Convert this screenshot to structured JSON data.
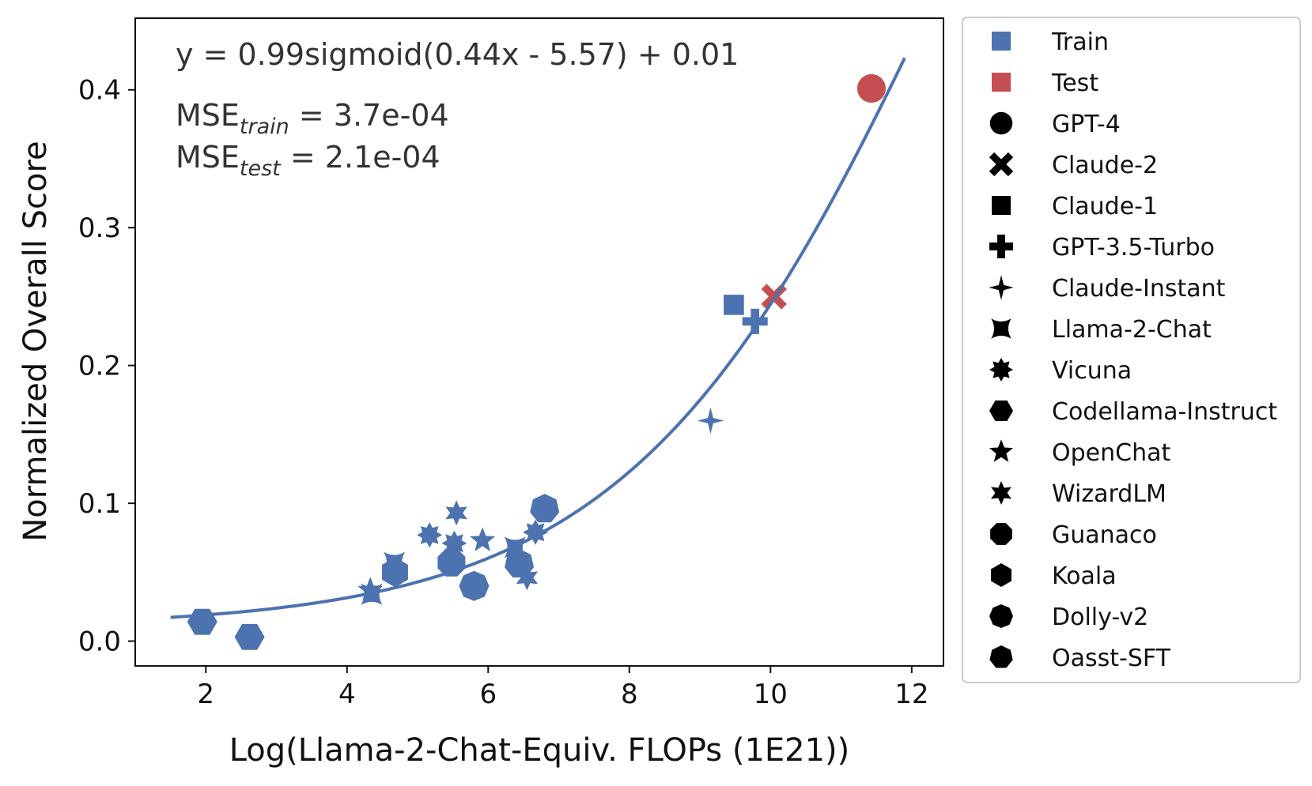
{
  "chart_data": {
    "type": "scatter",
    "xlabel": "Log(Llama-2-Chat-Equiv. FLOPs (1E21))",
    "ylabel": "Normalized Overall Score",
    "xlim": [
      1.0,
      12.45
    ],
    "ylim": [
      -0.018,
      0.452
    ],
    "x_ticks": [
      "2",
      "4",
      "6",
      "8",
      "10",
      "12"
    ],
    "y_ticks": [
      "0.0",
      "0.1",
      "0.2",
      "0.3",
      "0.4"
    ],
    "annotations": {
      "equation": "y = 0.99sigmoid(0.44x - 5.57) + 0.01",
      "mse_train_prefix": "MSE",
      "mse_train_sub": "train",
      "mse_train_value": " = 3.7e-04",
      "mse_test_prefix": "MSE",
      "mse_test_sub": "test",
      "mse_test_value": " = 2.1e-04"
    },
    "fit": {
      "a": 0.99,
      "k": 0.44,
      "b": -5.57,
      "c": 0.01,
      "x_start": 1.5,
      "x_end": 11.9,
      "color": "#4c72b0"
    },
    "colors": {
      "train": "#4c72b0",
      "test": "#c44e52"
    },
    "points": [
      {
        "x": 11.43,
        "y": 0.401,
        "model": "GPT-4",
        "split": "test"
      },
      {
        "x": 10.05,
        "y": 0.25,
        "model": "Claude-2",
        "split": "test"
      },
      {
        "x": 9.48,
        "y": 0.244,
        "model": "Claude-1",
        "split": "train"
      },
      {
        "x": 9.78,
        "y": 0.232,
        "model": "GPT-3.5-Turbo",
        "split": "train"
      },
      {
        "x": 9.15,
        "y": 0.16,
        "model": "Claude-Instant",
        "split": "train"
      },
      {
        "x": 4.35,
        "y": 0.034,
        "model": "Llama-2-Chat",
        "split": "train"
      },
      {
        "x": 4.67,
        "y": 0.057,
        "model": "Llama-2-Chat",
        "split": "train"
      },
      {
        "x": 6.38,
        "y": 0.068,
        "model": "Llama-2-Chat",
        "split": "train"
      },
      {
        "x": 5.17,
        "y": 0.077,
        "model": "Vicuna",
        "split": "train"
      },
      {
        "x": 5.52,
        "y": 0.071,
        "model": "Vicuna",
        "split": "train"
      },
      {
        "x": 6.67,
        "y": 0.079,
        "model": "Vicuna",
        "split": "train"
      },
      {
        "x": 1.95,
        "y": 0.014,
        "model": "Codellama-Instruct",
        "split": "train"
      },
      {
        "x": 2.62,
        "y": 0.003,
        "model": "Codellama-Instruct",
        "split": "train"
      },
      {
        "x": 5.92,
        "y": 0.073,
        "model": "OpenChat",
        "split": "train"
      },
      {
        "x": 4.33,
        "y": 0.037,
        "model": "OpenChat",
        "split": "train"
      },
      {
        "x": 5.55,
        "y": 0.093,
        "model": "WizardLM",
        "split": "train"
      },
      {
        "x": 6.55,
        "y": 0.046,
        "model": "WizardLM",
        "split": "train"
      },
      {
        "x": 5.48,
        "y": 0.057,
        "model": "Guanaco",
        "split": "train"
      },
      {
        "x": 4.68,
        "y": 0.05,
        "model": "Koala",
        "split": "train"
      },
      {
        "x": 5.8,
        "y": 0.04,
        "model": "Dolly-v2",
        "split": "train"
      },
      {
        "x": 6.8,
        "y": 0.096,
        "model": "Oasst-SFT",
        "split": "train"
      },
      {
        "x": 6.44,
        "y": 0.056,
        "model": "Oasst-SFT",
        "split": "train"
      }
    ],
    "legend": {
      "placement": "outside-right",
      "entries": [
        {
          "label": "Train",
          "marker": "square",
          "color": "#4c72b0"
        },
        {
          "label": "Test",
          "marker": "square",
          "color": "#c44e52"
        },
        {
          "label": "GPT-4",
          "marker": "circle"
        },
        {
          "label": "Claude-2",
          "marker": "x"
        },
        {
          "label": "Claude-1",
          "marker": "square"
        },
        {
          "label": "GPT-3.5-Turbo",
          "marker": "plus"
        },
        {
          "label": "Claude-Instant",
          "marker": "diamond4"
        },
        {
          "label": "Llama-2-Chat",
          "marker": "concave"
        },
        {
          "label": "Vicuna",
          "marker": "star8"
        },
        {
          "label": "Codellama-Instruct",
          "marker": "hexagon-flat"
        },
        {
          "label": "OpenChat",
          "marker": "star5"
        },
        {
          "label": "WizardLM",
          "marker": "star6"
        },
        {
          "label": "Guanaco",
          "marker": "octagon"
        },
        {
          "label": "Koala",
          "marker": "hexagon-pointy"
        },
        {
          "label": "Dolly-v2",
          "marker": "octagon-round"
        },
        {
          "label": "Oasst-SFT",
          "marker": "heptagon"
        }
      ]
    }
  }
}
